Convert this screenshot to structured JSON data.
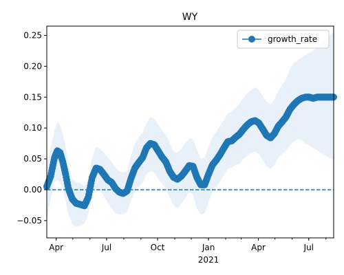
{
  "chart_data": {
    "type": "line",
    "title": "WY",
    "xlabel": "",
    "ylabel": "",
    "x_start": "2020-03-15",
    "x_end": "2021-08-15",
    "x_tick_labels": [
      {
        "date": "2020-04-01",
        "label": "Apr"
      },
      {
        "date": "2020-07-01",
        "label": "Jul"
      },
      {
        "date": "2020-10-01",
        "label": "Oct"
      },
      {
        "date": "2021-01-01",
        "label": "Jan"
      },
      {
        "date": "2021-04-01",
        "label": "Apr"
      },
      {
        "date": "2021-07-01",
        "label": "Jul"
      }
    ],
    "x_year_label": {
      "date": "2021-01-01",
      "label": "2021"
    },
    "y_ticks": [
      -0.05,
      0.0,
      0.05,
      0.1,
      0.15,
      0.2,
      0.25
    ],
    "y_tick_labels": [
      "−0.05",
      "0.00",
      "0.05",
      "0.10",
      "0.15",
      "0.20",
      "0.25"
    ],
    "ylim": [
      -0.078,
      0.265
    ],
    "legend": {
      "label": "growth_rate",
      "placement": "upper right"
    },
    "reference_line": {
      "y": 0.0,
      "style": "dashed"
    },
    "colors": {
      "line": "#1f77b4",
      "band": "#e8f1f9"
    },
    "series": [
      {
        "name": "growth_rate",
        "x": [
          "2020-03-15",
          "2020-03-22",
          "2020-03-29",
          "2020-04-03",
          "2020-04-08",
          "2020-04-13",
          "2020-04-18",
          "2020-04-23",
          "2020-04-30",
          "2020-05-07",
          "2020-05-15",
          "2020-05-22",
          "2020-05-29",
          "2020-06-05",
          "2020-06-12",
          "2020-06-19",
          "2020-06-26",
          "2020-07-03",
          "2020-07-10",
          "2020-07-17",
          "2020-07-24",
          "2020-07-31",
          "2020-08-07",
          "2020-08-14",
          "2020-08-21",
          "2020-08-28",
          "2020-09-04",
          "2020-09-11",
          "2020-09-18",
          "2020-09-25",
          "2020-10-02",
          "2020-10-09",
          "2020-10-16",
          "2020-10-23",
          "2020-10-30",
          "2020-11-06",
          "2020-11-13",
          "2020-11-20",
          "2020-11-27",
          "2020-12-04",
          "2020-12-11",
          "2020-12-18",
          "2020-12-25",
          "2021-01-01",
          "2021-01-08",
          "2021-01-15",
          "2021-01-22",
          "2021-01-29",
          "2021-02-05",
          "2021-02-12",
          "2021-02-19",
          "2021-02-26",
          "2021-03-05",
          "2021-03-12",
          "2021-03-19",
          "2021-03-26",
          "2021-04-02",
          "2021-04-09",
          "2021-04-16",
          "2021-04-23",
          "2021-04-30",
          "2021-05-07",
          "2021-05-14",
          "2021-05-21",
          "2021-05-28",
          "2021-06-04",
          "2021-06-11",
          "2021-06-18",
          "2021-06-25",
          "2021-07-02",
          "2021-07-09",
          "2021-07-16",
          "2021-07-23",
          "2021-07-30",
          "2021-08-06",
          "2021-08-15"
        ],
        "y": [
          0.005,
          0.022,
          0.052,
          0.063,
          0.06,
          0.045,
          0.025,
          0.002,
          -0.015,
          -0.022,
          -0.024,
          -0.026,
          -0.012,
          0.02,
          0.035,
          0.033,
          0.025,
          0.016,
          0.012,
          0.002,
          -0.004,
          -0.006,
          -0.002,
          0.018,
          0.035,
          0.044,
          0.052,
          0.068,
          0.075,
          0.073,
          0.063,
          0.053,
          0.045,
          0.03,
          0.02,
          0.017,
          0.022,
          0.03,
          0.039,
          0.038,
          0.02,
          0.008,
          0.008,
          0.025,
          0.04,
          0.048,
          0.057,
          0.068,
          0.078,
          0.079,
          0.085,
          0.09,
          0.098,
          0.105,
          0.11,
          0.112,
          0.108,
          0.098,
          0.088,
          0.084,
          0.091,
          0.103,
          0.11,
          0.118,
          0.13,
          0.138,
          0.144,
          0.148,
          0.15,
          0.15,
          0.148,
          0.15,
          0.15,
          0.15,
          0.15,
          0.15
        ],
        "lower": [
          -0.05,
          -0.015,
          0.012,
          0.016,
          0.012,
          0.002,
          -0.018,
          -0.04,
          -0.055,
          -0.06,
          -0.058,
          -0.055,
          -0.04,
          -0.01,
          0.002,
          0.0,
          -0.01,
          -0.02,
          -0.03,
          -0.038,
          -0.04,
          -0.04,
          -0.035,
          -0.018,
          -0.003,
          0.005,
          0.012,
          0.025,
          0.03,
          0.028,
          0.018,
          0.01,
          0.002,
          -0.012,
          -0.025,
          -0.03,
          -0.022,
          -0.014,
          -0.004,
          -0.008,
          -0.03,
          -0.04,
          -0.038,
          -0.02,
          -0.002,
          0.005,
          0.014,
          0.024,
          0.034,
          0.036,
          0.04,
          0.042,
          0.05,
          0.055,
          0.06,
          0.062,
          0.058,
          0.048,
          0.038,
          0.034,
          0.04,
          0.052,
          0.058,
          0.064,
          0.072,
          0.078,
          0.082,
          0.08,
          0.075,
          0.072,
          0.068,
          0.064,
          0.06,
          0.056,
          0.052,
          0.048
        ],
        "upper": [
          0.045,
          0.068,
          0.096,
          0.11,
          0.105,
          0.09,
          0.07,
          0.04,
          0.018,
          0.012,
          0.01,
          0.005,
          0.018,
          0.052,
          0.07,
          0.066,
          0.06,
          0.052,
          0.045,
          0.036,
          0.03,
          0.028,
          0.03,
          0.055,
          0.075,
          0.085,
          0.093,
          0.108,
          0.118,
          0.115,
          0.105,
          0.096,
          0.09,
          0.075,
          0.062,
          0.06,
          0.066,
          0.075,
          0.083,
          0.082,
          0.065,
          0.05,
          0.052,
          0.07,
          0.085,
          0.094,
          0.104,
          0.114,
          0.124,
          0.126,
          0.133,
          0.14,
          0.148,
          0.156,
          0.162,
          0.166,
          0.162,
          0.152,
          0.142,
          0.138,
          0.146,
          0.16,
          0.17,
          0.18,
          0.195,
          0.205,
          0.21,
          0.214,
          0.218,
          0.222,
          0.225,
          0.23,
          0.236,
          0.242,
          0.248,
          0.255
        ]
      }
    ]
  }
}
